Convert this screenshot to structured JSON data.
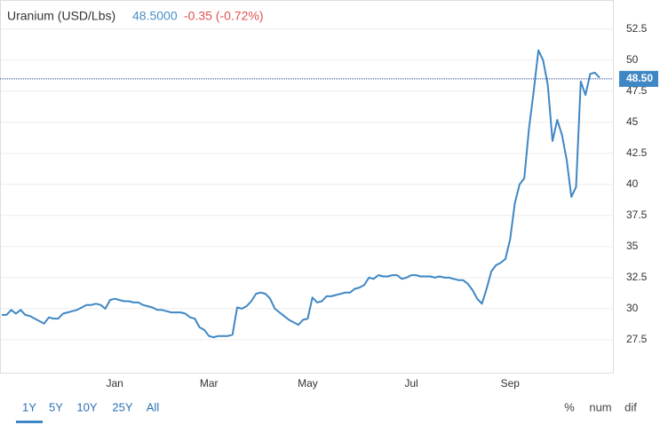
{
  "chart_data": {
    "type": "line",
    "title": "Uranium (USD/Lbs)",
    "price_text": "48.5000",
    "change_text": "-0.35 (-0.72%)",
    "color": "#3f87c4",
    "grid": true,
    "categories": [
      null,
      null,
      null,
      null,
      null,
      null,
      null,
      null,
      null,
      null,
      null,
      null,
      null,
      null,
      null,
      null,
      null,
      null,
      null,
      null,
      null,
      null,
      null,
      null,
      "Jan",
      null,
      null,
      null,
      null,
      null,
      null,
      null,
      null,
      null,
      null,
      null,
      null,
      null,
      null,
      null,
      null,
      null,
      null,
      null,
      "Mar",
      null,
      null,
      null,
      null,
      null,
      null,
      null,
      null,
      null,
      null,
      null,
      null,
      null,
      null,
      null,
      null,
      null,
      null,
      null,
      null,
      "May",
      null,
      null,
      null,
      null,
      null,
      null,
      null,
      null,
      null,
      null,
      null,
      null,
      null,
      null,
      null,
      null,
      null,
      null,
      null,
      null,
      null,
      "Jul",
      null,
      null,
      null,
      null,
      null,
      null,
      null,
      null,
      null,
      null,
      null,
      null,
      null,
      null,
      null,
      null,
      null,
      null,
      null,
      null,
      "Sep",
      null,
      null,
      null,
      null,
      null,
      null,
      null,
      null,
      null,
      null,
      null,
      null,
      null,
      null,
      null,
      null,
      null,
      null,
      null
    ],
    "values": [
      29.5,
      29.5,
      29.9,
      29.6,
      29.9,
      29.5,
      29.4,
      29.2,
      29.0,
      28.8,
      29.3,
      29.2,
      29.2,
      29.6,
      29.7,
      29.8,
      29.9,
      30.1,
      30.3,
      30.3,
      30.4,
      30.3,
      30.0,
      30.7,
      30.8,
      30.7,
      30.6,
      30.6,
      30.5,
      30.5,
      30.3,
      30.2,
      30.1,
      29.9,
      29.9,
      29.8,
      29.7,
      29.7,
      29.7,
      29.6,
      29.3,
      29.2,
      28.5,
      28.3,
      27.8,
      27.7,
      27.8,
      27.8,
      27.8,
      27.9,
      30.1,
      30.0,
      30.2,
      30.6,
      31.2,
      31.3,
      31.2,
      30.8,
      30.0,
      29.7,
      29.4,
      29.1,
      28.9,
      28.7,
      29.1,
      29.2,
      30.9,
      30.5,
      30.6,
      31.0,
      31.0,
      31.1,
      31.2,
      31.3,
      31.3,
      31.6,
      31.7,
      31.9,
      32.5,
      32.4,
      32.7,
      32.6,
      32.6,
      32.7,
      32.7,
      32.4,
      32.5,
      32.7,
      32.7,
      32.6,
      32.6,
      32.6,
      32.5,
      32.6,
      32.5,
      32.5,
      32.4,
      32.3,
      32.3,
      32.0,
      31.5,
      30.8,
      30.4,
      31.6,
      33.0,
      33.5,
      33.7,
      34.0,
      35.6,
      38.5,
      40.0,
      40.5,
      44.5,
      47.5,
      50.8,
      50.0,
      48.0,
      43.5,
      45.2,
      44.0,
      42.0,
      39.0,
      39.8,
      48.3,
      47.2,
      48.9,
      49.0,
      48.6
    ],
    "ylim": [
      24.85,
      54.85
    ],
    "yticks": [
      27.5,
      30,
      32.5,
      35,
      37.5,
      40,
      42.5,
      45,
      47.5,
      50,
      52.5
    ],
    "last_price": {
      "value": 48.5,
      "label": "48.50"
    }
  },
  "controls": {
    "ranges": [
      "1Y",
      "5Y",
      "10Y",
      "25Y",
      "All"
    ],
    "modes": [
      "%",
      "num",
      "dif"
    ]
  }
}
